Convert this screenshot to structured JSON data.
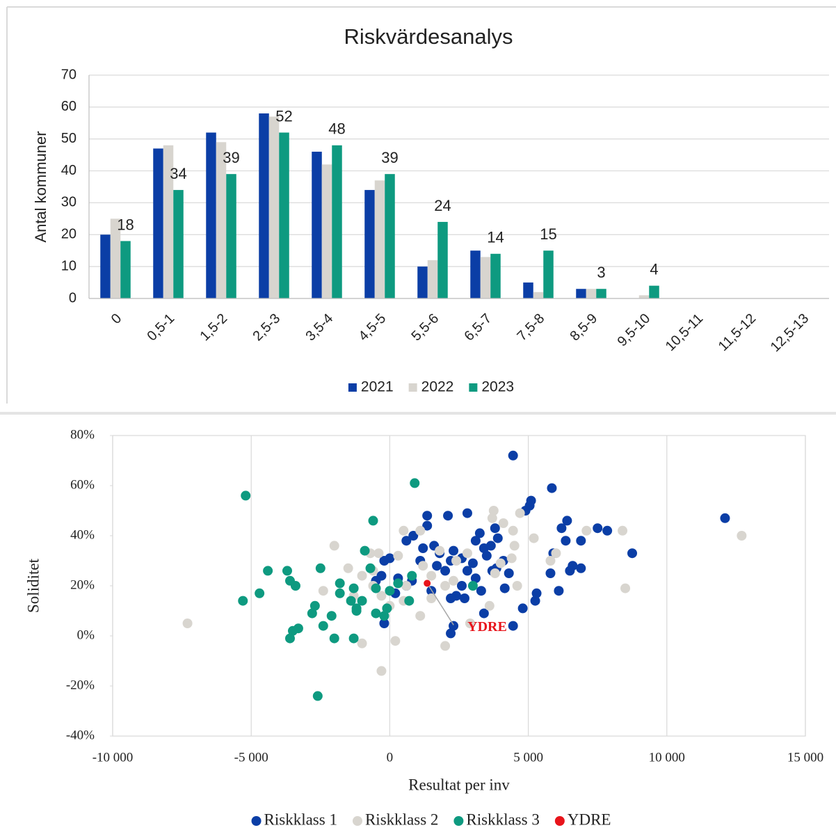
{
  "chart_data": [
    {
      "type": "bar",
      "title": "Riskvärdesanalys",
      "y_label": "Antal kommuner",
      "categories": [
        "0",
        "0,5-1",
        "1,5-2",
        "2,5-3",
        "3,5-4",
        "4,5-5",
        "5,5-6",
        "6,5-7",
        "7,5-8",
        "8,5-9",
        "9,5-10",
        "10,5-11",
        "11,5-12",
        "12,5-13"
      ],
      "series": [
        {
          "name": "2021",
          "color": "#0b3ea6",
          "values": [
            20,
            47,
            52,
            58,
            46,
            34,
            10,
            15,
            5,
            3,
            0,
            0,
            0,
            0
          ]
        },
        {
          "name": "2022",
          "color": "#d8d5cf",
          "values": [
            25,
            48,
            49,
            57,
            42,
            37,
            12,
            13,
            2,
            3,
            1,
            0,
            0,
            0
          ]
        },
        {
          "name": "2023",
          "color": "#0e9a80",
          "values": [
            18,
            34,
            39,
            52,
            48,
            39,
            24,
            14,
            15,
            3,
            4,
            0,
            0,
            0
          ],
          "show_values": true
        }
      ],
      "ylim": [
        0,
        70
      ],
      "yticks": [
        0,
        10,
        20,
        30,
        40,
        50,
        60,
        70
      ],
      "grid": true,
      "legend": "bottom"
    },
    {
      "type": "scatter",
      "x_label": "Resultat per inv",
      "y_label": "Soliditet",
      "series": [
        {
          "name": "Riskklass 1",
          "color": "#0b3ea6",
          "x": [
            4450,
            5850,
            12100,
            7500,
            7850,
            8750,
            6900,
            6400,
            6200,
            6350,
            5050,
            5100,
            4900,
            5900,
            5800,
            6100,
            5300,
            5250,
            6600,
            6900,
            6500,
            4800,
            4450,
            3850,
            3900,
            3800,
            3250,
            3100,
            2800,
            2100,
            1350,
            1350,
            850,
            600,
            1200,
            1800,
            2300,
            2600,
            2200,
            3000,
            3500,
            3700,
            4100,
            4300,
            4150,
            3300,
            3100,
            2800,
            2600,
            2400,
            2200,
            1500,
            800,
            600,
            300,
            0,
            -200,
            -300,
            -500,
            -200,
            200,
            1100,
            1600,
            2000,
            2700,
            3400,
            2200,
            2300,
            1700,
            3400,
            3650
          ],
          "values": [
            72,
            59,
            47,
            43,
            42,
            33,
            38,
            46,
            43,
            38,
            52,
            54,
            50,
            33,
            25,
            18,
            17,
            14,
            28,
            27,
            26,
            11,
            4,
            27,
            39,
            43,
            41,
            38,
            49,
            48,
            48,
            44,
            40,
            38,
            35,
            33,
            34,
            31,
            30,
            29,
            32,
            26,
            30,
            25,
            19,
            18,
            23,
            26,
            20,
            16,
            15,
            18,
            22,
            20,
            23,
            31,
            30,
            24,
            22,
            5,
            17,
            30,
            36,
            26,
            15,
            9,
            1,
            4,
            28,
            35,
            36
          ]
        },
        {
          "name": "Riskklass 2",
          "color": "#d8d5cf",
          "x": [
            -7300,
            12700,
            8500,
            8400,
            7100,
            5200,
            4700,
            3750,
            3700,
            4100,
            4450,
            4500,
            4400,
            4000,
            5800,
            6000,
            2800,
            2400,
            1800,
            1100,
            500,
            -400,
            -700,
            -2000,
            -1500,
            -1000,
            -600,
            -300,
            0,
            500,
            1100,
            1500,
            2000,
            2900,
            2000,
            -1000,
            -300,
            200,
            -2400,
            -600,
            600,
            1500,
            2300,
            3600,
            3800,
            4600,
            1200,
            300,
            -1300
          ],
          "values": [
            5,
            40,
            19,
            42,
            42,
            39,
            49,
            50,
            47,
            45,
            42,
            36,
            31,
            29,
            30,
            33,
            33,
            30,
            34,
            42,
            42,
            33,
            33,
            36,
            27,
            24,
            20,
            16,
            12,
            14,
            8,
            15,
            20,
            5,
            -4,
            -3,
            -14,
            -2,
            18,
            26,
            20,
            24,
            22,
            12,
            25,
            20,
            28,
            32,
            16
          ]
        },
        {
          "name": "Riskklass 3",
          "color": "#0e9a80",
          "x": [
            -5200,
            900,
            -600,
            -900,
            -4400,
            -3700,
            -3600,
            -3400,
            -5300,
            -4700,
            -3500,
            -3300,
            -3600,
            -2500,
            -2700,
            -2800,
            -2400,
            -2000,
            -1300,
            -2100,
            -2600,
            -1800,
            -1800,
            -1300,
            -1400,
            -1200,
            -1000,
            -500,
            -500,
            -200,
            0,
            300,
            800,
            700,
            3000,
            -100,
            -1200,
            -700
          ],
          "values": [
            56,
            61,
            46,
            34,
            26,
            26,
            22,
            20,
            14,
            17,
            2,
            3,
            -1,
            27,
            12,
            9,
            4,
            -1,
            -1,
            8,
            -24,
            21,
            17,
            19,
            14,
            11,
            14,
            19,
            9,
            8,
            18,
            21,
            24,
            14,
            20,
            11,
            10,
            27
          ]
        },
        {
          "name": "YDRE",
          "color": "#e8141b",
          "x": [
            1350
          ],
          "values": [
            21
          ],
          "label_points": true
        }
      ],
      "xlim": [
        -10000,
        15000
      ],
      "xticks": [
        {
          "value": -10000,
          "label": "-10 000"
        },
        {
          "value": -5000,
          "label": "-5 000"
        },
        0,
        {
          "value": 5000,
          "label": "5 000"
        },
        {
          "value": 10000,
          "label": "10 000"
        },
        {
          "value": 15000,
          "label": "15 000"
        }
      ],
      "ylim": [
        -40,
        80
      ],
      "yticks": [
        {
          "value": -40,
          "label": "-40%"
        },
        {
          "value": -20,
          "label": "-20%"
        },
        {
          "value": 0,
          "label": "0%"
        },
        {
          "value": 20,
          "label": "20%"
        },
        {
          "value": 40,
          "label": "40%"
        },
        {
          "value": 60,
          "label": "60%"
        },
        {
          "value": 80,
          "label": "80%"
        }
      ],
      "grid": true,
      "legend": "bottom"
    }
  ]
}
